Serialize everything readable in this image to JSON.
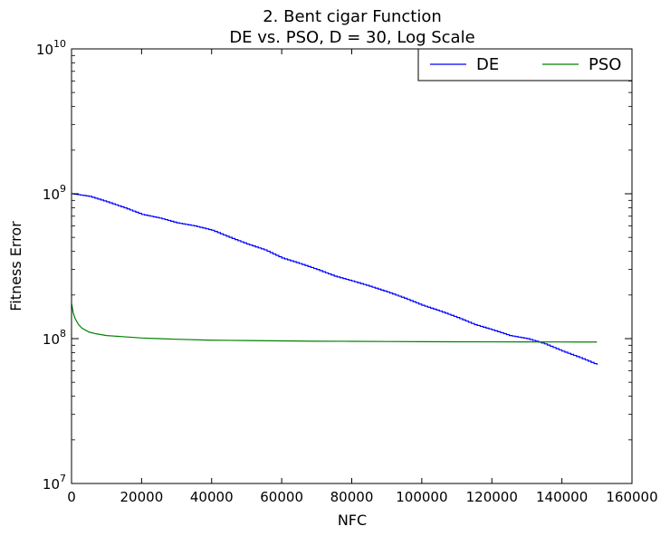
{
  "chart_data": {
    "type": "line",
    "title_line1": "2.   Bent cigar Function",
    "title_line2": "DE vs. PSO, D = 30, Log Scale",
    "xlabel": "NFC",
    "ylabel": "Fitness Error",
    "xlim": [
      0,
      160000
    ],
    "ylim": [
      10000000,
      10000000000
    ],
    "yscale": "log",
    "x_ticks": [
      0,
      20000,
      40000,
      60000,
      80000,
      100000,
      120000,
      140000,
      160000
    ],
    "x_tick_labels": [
      "0",
      "20000",
      "40000",
      "60000",
      "80000",
      "100000",
      "120000",
      "140000",
      "160000"
    ],
    "y_ticks": [
      {
        "value": 10000000,
        "base": "10",
        "exp": "7"
      },
      {
        "value": 100000000,
        "base": "10",
        "exp": "8"
      },
      {
        "value": 1000000000,
        "base": "10",
        "exp": "9"
      },
      {
        "value": 10000000000,
        "base": "10",
        "exp": "10"
      }
    ],
    "grid": false,
    "legend_position": "top-right",
    "series": [
      {
        "name": "DE",
        "color": "#0000ff",
        "x": [
          0,
          5000,
          10000,
          15000,
          20000,
          25000,
          30000,
          35000,
          40000,
          45000,
          50000,
          55000,
          60000,
          65000,
          70000,
          75000,
          80000,
          85000,
          90000,
          95000,
          100000,
          105000,
          110000,
          115000,
          120000,
          125000,
          130000,
          135000,
          140000,
          145000,
          150000
        ],
        "y": [
          1000000000,
          960000000,
          880000000,
          800000000,
          720000000,
          680000000,
          630000000,
          600000000,
          560000000,
          500000000,
          450000000,
          410000000,
          360000000,
          330000000,
          300000000,
          270000000,
          250000000,
          230000000,
          210000000,
          190000000,
          170000000,
          155000000,
          140000000,
          125000000,
          115000000,
          105000000,
          100000000,
          92000000,
          82000000,
          74000000,
          66000000
        ]
      },
      {
        "name": "PSO",
        "color": "#008000",
        "x": [
          0,
          500,
          1000,
          2000,
          3000,
          5000,
          7000,
          10000,
          15000,
          20000,
          25000,
          30000,
          40000,
          50000,
          60000,
          70000,
          80000,
          90000,
          100000,
          110000,
          120000,
          130000,
          140000,
          150000
        ],
        "y": [
          175000000,
          150000000,
          138000000,
          125000000,
          118000000,
          111000000,
          108000000,
          105000000,
          103000000,
          101000000,
          100000000,
          99000000,
          97500000,
          97000000,
          96500000,
          96000000,
          95800000,
          95500000,
          95300000,
          95100000,
          95000000,
          94900000,
          94800000,
          94700000
        ]
      }
    ]
  }
}
